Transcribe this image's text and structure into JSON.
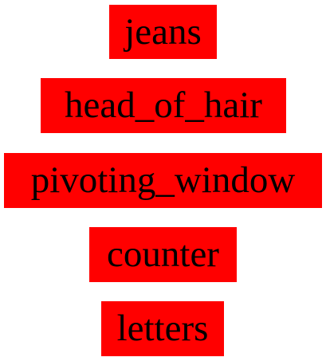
{
  "labels": [
    "jeans",
    "head_of_hair",
    "pivoting_window",
    "counter",
    "letters"
  ],
  "colors": {
    "box_fill": "#ff0000",
    "text": "#000000",
    "background": "#ffffff"
  }
}
